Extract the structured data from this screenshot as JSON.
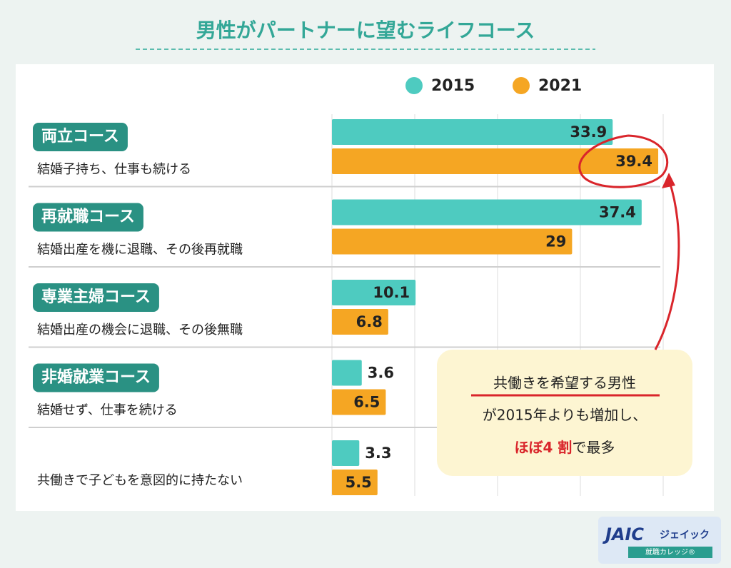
{
  "chart_data": {
    "type": "bar",
    "orientation": "horizontal",
    "title": "男性がパートナーに望むライフコース",
    "categories": [
      "両立コース",
      "再就職コース",
      "専業主婦コース",
      "非婚就業コース",
      null
    ],
    "descriptions": [
      "結婚子持ち、仕事も続ける",
      "結婚出産を機に退職、その後再就職",
      "結婚出産の機会に退職、その後無職",
      "結婚せず、仕事を続ける",
      "共働きで子どもを意図的に持たない"
    ],
    "series": [
      {
        "name": "2015",
        "color": "#4ecbc0",
        "values": [
          33.9,
          37.4,
          10.1,
          3.6,
          3.3
        ]
      },
      {
        "name": "2021",
        "color": "#f5a623",
        "values": [
          39.4,
          29,
          6.8,
          6.5,
          5.5
        ]
      }
    ],
    "xlim": [
      0,
      40
    ],
    "xticks": [
      0,
      10,
      20,
      30,
      40
    ],
    "grid": true,
    "annotation": {
      "line1": "共働きを希望する男性",
      "line2": "が2015年よりも増加し、",
      "line3_highlight": "ほぼ4 割",
      "line3_rest": "で最多"
    }
  },
  "logo": {
    "mark": "JAIC",
    "name": "ジェイック",
    "sub": "就職カレッジ®"
  }
}
